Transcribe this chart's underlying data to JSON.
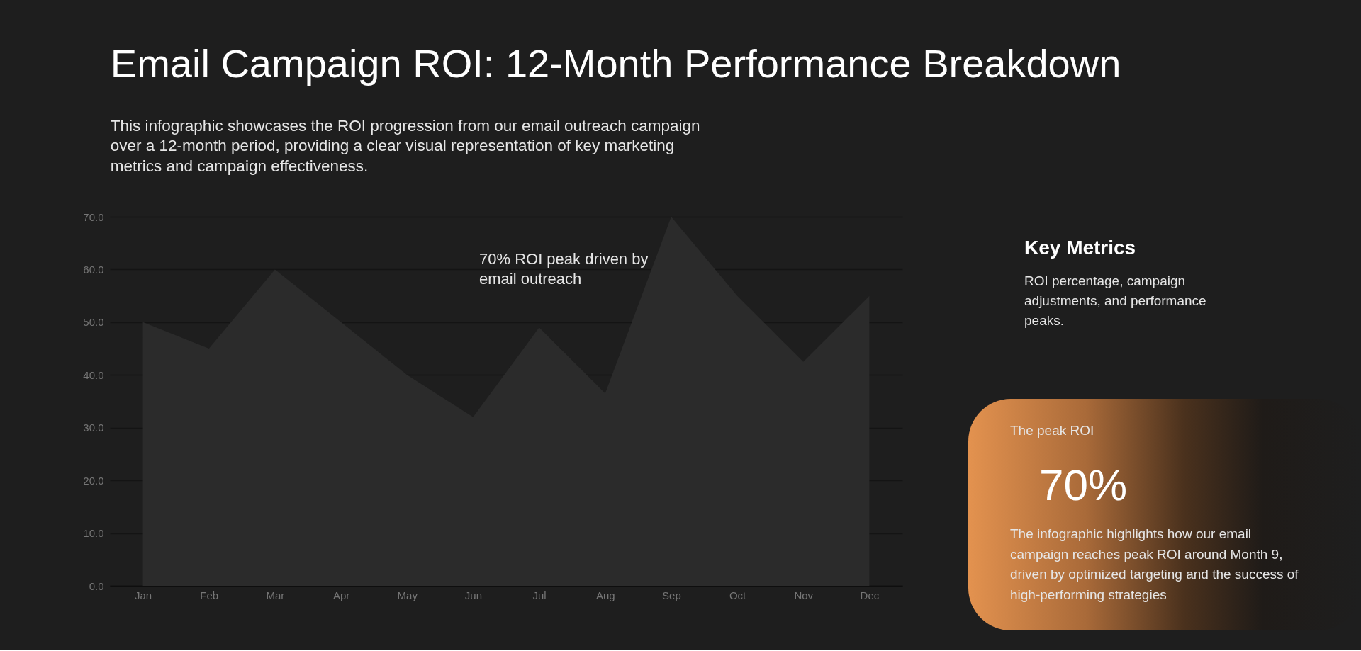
{
  "chart_data": [
    {
      "type": "area",
      "title": "Email Campaign ROI: 12-Month Performance Breakdown",
      "subtitle": "This infographic showcases the ROI progression from our email outreach campaign over a 12-month period, providing a clear visual representation of key marketing metrics and campaign effectiveness.",
      "categories": [
        "Jan",
        "Feb",
        "Mar",
        "Apr",
        "May",
        "Jun",
        "Jul",
        "Aug",
        "Sep",
        "Oct",
        "Nov",
        "Dec"
      ],
      "values": [
        50,
        45,
        60,
        50,
        40,
        32,
        49,
        36.5,
        70,
        55,
        42.5,
        55
      ],
      "color": "#2b2b2b",
      "ylim": [
        0,
        70
      ],
      "yticks": [
        {
          "value": 0,
          "label": "0.0"
        },
        {
          "value": 10,
          "label": "10.0"
        },
        {
          "value": 20,
          "label": "20.0"
        },
        {
          "value": 30,
          "label": "30.0"
        },
        {
          "value": 40,
          "label": "40.0"
        },
        {
          "value": 50,
          "label": "50.0"
        },
        {
          "value": 60,
          "label": "60.0"
        },
        {
          "value": 70,
          "label": "70.0"
        }
      ],
      "grid": "y",
      "annotations": [
        "70% ROI peak driven by email outreach"
      ]
    },
    {
      "type": "other",
      "title": "Key Metrics",
      "annotations": [
        "ROI percentage, campaign adjustments, and performance peaks."
      ]
    },
    {
      "type": "other",
      "title": "The peak ROI",
      "annotations": [
        "70%",
        "The infographic highlights how our email campaign reaches peak ROI around Month 9, driven by optimized targeting and the success of high-performing strategies"
      ]
    }
  ]
}
